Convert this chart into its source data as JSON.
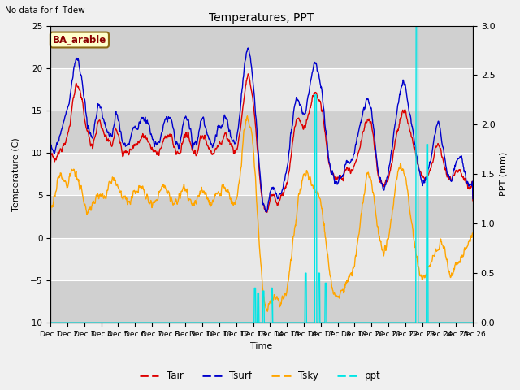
{
  "title": "Temperatures, PPT",
  "subtitle": "No data for f_Tdew",
  "station_label": "BA_arable",
  "xlabel": "Time",
  "ylabel_left": "Temperature (C)",
  "ylabel_right": "PPT (mm)",
  "xlim": [
    0,
    25
  ],
  "ylim_left": [
    -10,
    25
  ],
  "ylim_right": [
    0.0,
    3.0
  ],
  "yticks_left": [
    -10,
    -5,
    0,
    5,
    10,
    15,
    20,
    25
  ],
  "yticks_right": [
    0.0,
    0.5,
    1.0,
    1.5,
    2.0,
    2.5,
    3.0
  ],
  "band_ranges": [
    [
      -10,
      -5
    ],
    [
      0,
      5
    ],
    [
      10,
      15
    ],
    [
      20,
      25
    ]
  ],
  "tair_color": "#dd0000",
  "tsurf_color": "#0000cc",
  "tsky_color": "#ffa500",
  "ppt_color": "#00e5e5",
  "background_color": "#f0f0f0",
  "plot_bg_color": "#e8e8e8",
  "band_color": "#d0d0d0",
  "band_color2": "#c8c8c8"
}
